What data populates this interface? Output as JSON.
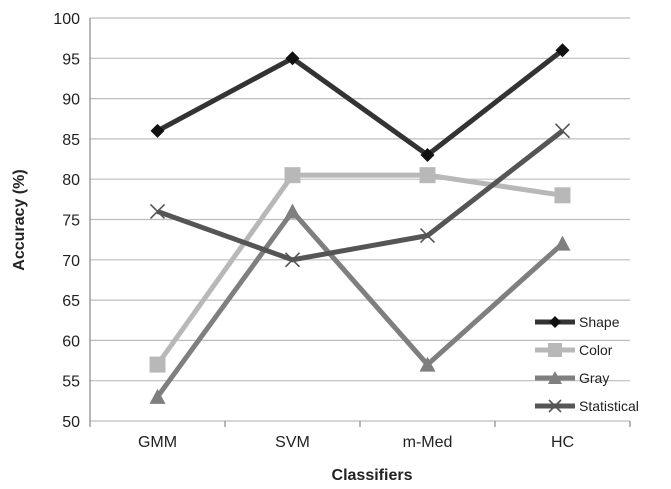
{
  "chart_data": {
    "type": "line",
    "categories": [
      "GMM",
      "SVM",
      "m-Med",
      "HC"
    ],
    "xlabel": "Classifiers",
    "ylabel": "Accuracy (%)",
    "ylim": [
      50,
      100
    ],
    "yticks": [
      50,
      55,
      60,
      65,
      70,
      75,
      80,
      85,
      90,
      95,
      100
    ],
    "grid": "horizontal",
    "legend_position": "bottom-right",
    "series": [
      {
        "name": "Shape",
        "values": [
          86,
          95,
          83,
          96
        ],
        "marker": "diamond",
        "color": "#333333"
      },
      {
        "name": "Color",
        "values": [
          57,
          80.5,
          80.5,
          78
        ],
        "marker": "square",
        "color": "#b8b8b8"
      },
      {
        "name": "Gray",
        "values": [
          53,
          76,
          57,
          72
        ],
        "marker": "triangle",
        "color": "#7f7f7f"
      },
      {
        "name": "Statistical",
        "values": [
          76,
          70,
          73,
          86
        ],
        "marker": "x",
        "color": "#555555"
      }
    ]
  }
}
